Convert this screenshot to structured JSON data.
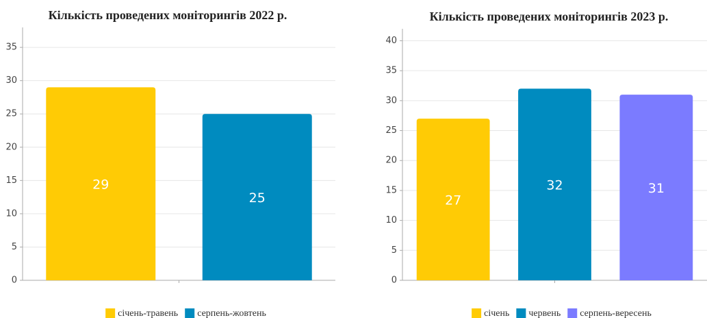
{
  "chart_data": [
    {
      "type": "bar",
      "title": "Кількість проведених моніторингів 2022 р.",
      "series": [
        {
          "name": "січень-травень",
          "color": "#ffcb05",
          "values": [
            29
          ]
        },
        {
          "name": "серпень-жовтень",
          "color": "#008bbf",
          "values": [
            25
          ]
        }
      ],
      "ylim": [
        0,
        38
      ],
      "yticks": [
        0,
        5,
        10,
        15,
        20,
        25,
        30,
        35
      ],
      "grid": true
    },
    {
      "type": "bar",
      "title": "Кількість проведених моніторингів 2023 р.",
      "series": [
        {
          "name": "січень",
          "color": "#ffcb05",
          "values": [
            27
          ]
        },
        {
          "name": "червень",
          "color": "#008bbf",
          "values": [
            32
          ]
        },
        {
          "name": "серпень-вересень",
          "color": "#7b7bff",
          "values": [
            31
          ]
        }
      ],
      "ylim": [
        0,
        42
      ],
      "yticks": [
        0,
        5,
        10,
        15,
        20,
        25,
        30,
        35,
        40
      ],
      "grid": true
    }
  ]
}
